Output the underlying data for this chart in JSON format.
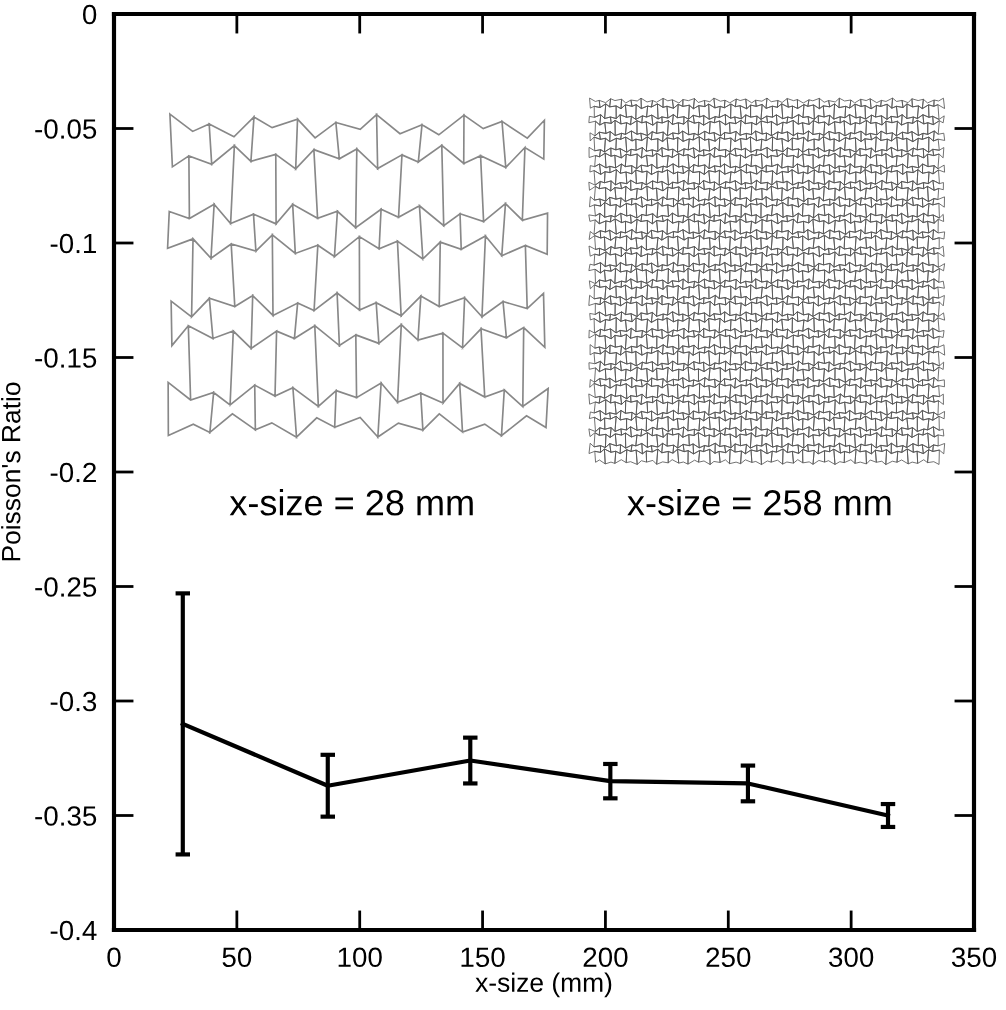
{
  "chart_data": {
    "type": "line",
    "xlabel": "x-size (mm)",
    "ylabel": "Poisson's Ratio",
    "annotations": [
      "x-size = 28 mm",
      "x-size = 258 mm"
    ],
    "x": [
      28,
      87,
      145,
      202,
      258,
      315
    ],
    "series": [
      {
        "color": "#000000",
        "values": [
          -0.31,
          -0.337,
          -0.326,
          -0.335,
          -0.336,
          -0.35
        ],
        "errors": [
          0.057,
          0.0135,
          0.01,
          0.0075,
          0.0078,
          0.005
        ]
      }
    ],
    "xlim": [
      0,
      350
    ],
    "ylim": [
      -0.4,
      0
    ],
    "xticks": [
      0,
      50,
      100,
      150,
      200,
      250,
      300,
      350
    ],
    "yticks": [
      -0.4,
      -0.35,
      -0.3,
      -0.25,
      -0.2,
      -0.15,
      -0.1,
      -0.05,
      0
    ],
    "grid": false,
    "marker": "none",
    "line_style": "solid"
  }
}
